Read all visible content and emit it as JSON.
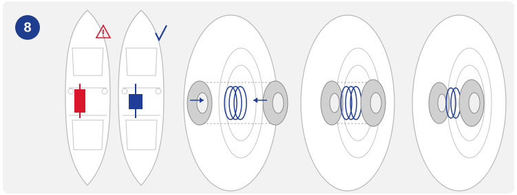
{
  "step": "8"
}
